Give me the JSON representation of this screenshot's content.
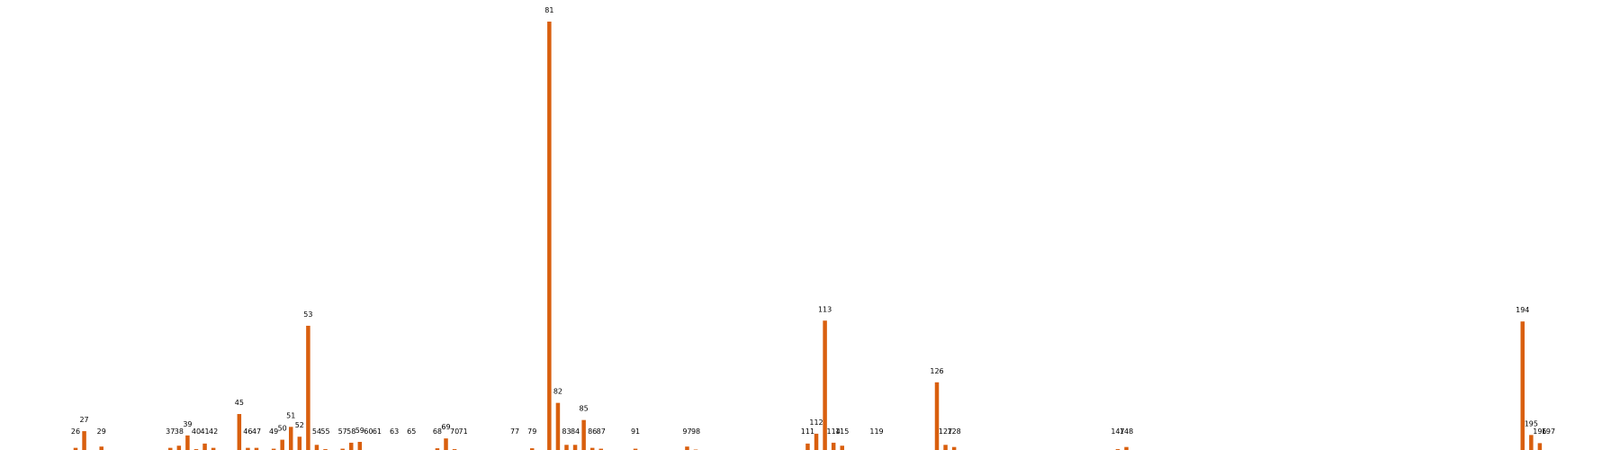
{
  "chart_data": {
    "type": "bar",
    "title": "",
    "xlabel": "",
    "ylabel": "",
    "grid": false,
    "legend": "none",
    "bar_color": "#d95f0e",
    "xlim": [
      1,
      200
    ],
    "ylim": [
      0,
      100
    ],
    "categories": [
      "26",
      "27",
      "29",
      "37",
      "38",
      "39",
      "40",
      "41",
      "42",
      "45",
      "46",
      "47",
      "49",
      "50",
      "51",
      "52",
      "53",
      "54",
      "55",
      "57",
      "58",
      "59",
      "60",
      "61",
      "63",
      "65",
      "68",
      "69",
      "70",
      "71",
      "77",
      "79",
      "81",
      "82",
      "83",
      "84",
      "85",
      "86",
      "87",
      "91",
      "97",
      "98",
      "111",
      "112",
      "113",
      "114",
      "115",
      "119",
      "126",
      "127",
      "128",
      "147",
      "148",
      "194",
      "195",
      "196",
      "197"
    ],
    "x": [
      26,
      27,
      29,
      37,
      38,
      39,
      40,
      41,
      42,
      45,
      46,
      47,
      49,
      50,
      51,
      52,
      53,
      54,
      55,
      57,
      58,
      59,
      60,
      61,
      63,
      65,
      68,
      69,
      70,
      71,
      77,
      79,
      81,
      82,
      83,
      84,
      85,
      86,
      87,
      91,
      97,
      98,
      111,
      112,
      113,
      114,
      115,
      119,
      126,
      127,
      128,
      147,
      148,
      194,
      195,
      196,
      197
    ],
    "values": [
      0.5,
      4.4,
      0.8,
      0.5,
      1.0,
      3.4,
      0.2,
      1.5,
      0.5,
      8.4,
      0.5,
      0.5,
      0.3,
      2.4,
      5.4,
      3.1,
      29.0,
      1.2,
      0.2,
      0.3,
      1.7,
      1.9,
      0,
      0,
      0,
      0,
      0.4,
      2.7,
      0.2,
      0,
      0,
      0.4,
      100.0,
      11.0,
      1.2,
      1.2,
      7.0,
      0.5,
      0.3,
      0.3,
      0.8,
      0.1,
      1.5,
      3.8,
      30.2,
      1.7,
      1.0,
      0,
      15.8,
      1.2,
      0.7,
      0.2,
      0.7,
      30.0,
      3.5,
      1.6,
      0
    ]
  }
}
